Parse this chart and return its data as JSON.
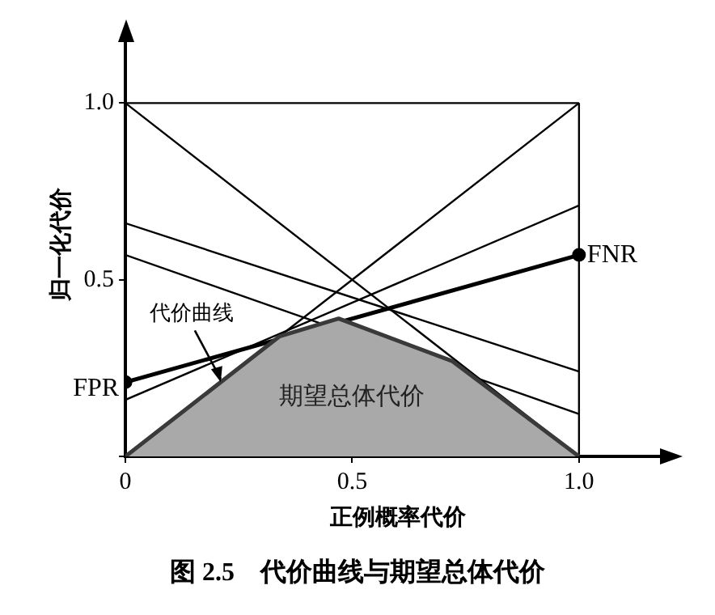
{
  "chart_data": {
    "type": "line",
    "title": "图 2.5　代价曲线与期望总体代价",
    "xlabel": "正例概率代价",
    "ylabel": "归一化代价",
    "xlim": [
      0,
      1.2
    ],
    "ylim": [
      0,
      1.2
    ],
    "xticks": [
      0,
      0.5,
      {
        "value": 1,
        "label": "1.0"
      }
    ],
    "yticks": [
      {
        "value": 0,
        "label": null
      },
      0.5,
      {
        "value": 1,
        "label": "1.0"
      }
    ],
    "grid": false,
    "legend": false,
    "series": [
      {
        "type": "area",
        "color": "#a9a9a9",
        "x": [
          0,
          0.34,
          0.47,
          0.72,
          1
        ],
        "values": [
          0,
          0.34,
          0.39,
          0.27,
          0
        ]
      },
      {
        "color": "#000000",
        "x": [
          0,
          1
        ],
        "values": [
          1,
          1
        ]
      },
      {
        "color": "#000000",
        "x": [
          1,
          1
        ],
        "values": [
          0,
          1
        ]
      },
      {
        "color": "#000000",
        "x": [
          0,
          1
        ],
        "values": [
          1,
          0
        ]
      },
      {
        "color": "#000000",
        "x": [
          0,
          1
        ],
        "values": [
          0,
          1
        ]
      },
      {
        "color": "#000000",
        "x": [
          0,
          1
        ],
        "values": [
          0.66,
          0.24
        ]
      },
      {
        "color": "#000000",
        "x": [
          0,
          1
        ],
        "values": [
          0.57,
          0.12
        ]
      },
      {
        "color": "#000000",
        "x": [
          0,
          1
        ],
        "values": [
          0.16,
          0.71
        ]
      },
      {
        "color": "#000000",
        "marker": "circle",
        "x": [
          0,
          1
        ],
        "values": [
          0.21,
          0.57
        ]
      }
    ],
    "annotations": [
      {
        "text": "FPR",
        "x": 0,
        "y": 0.21
      },
      {
        "text": "FNR",
        "x": 1,
        "y": 0.57
      },
      {
        "text": "代价曲线",
        "x": 0.21,
        "y": 0.21
      },
      "期望总体代价"
    ]
  }
}
